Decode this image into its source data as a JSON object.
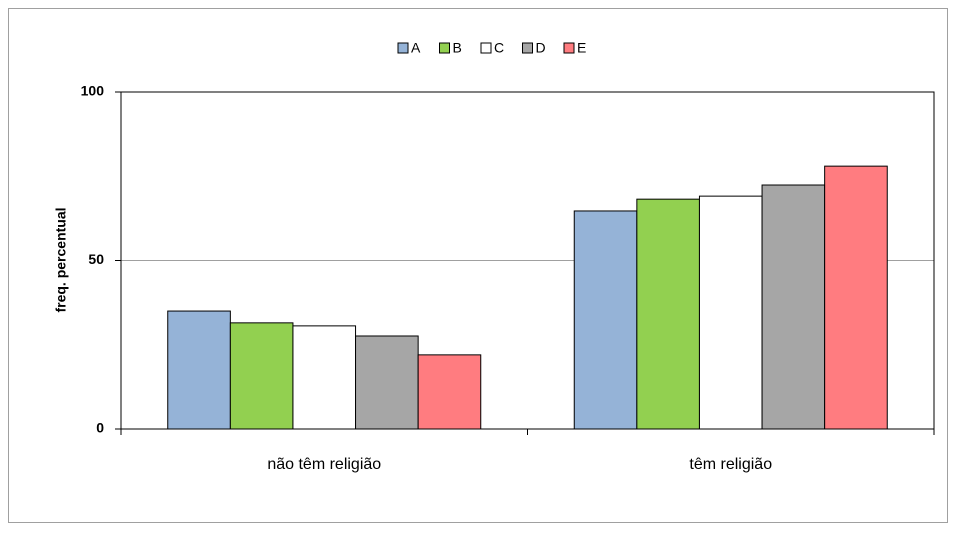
{
  "chart_data": {
    "type": "bar",
    "categories": [
      "não têm religião",
      "têm religião"
    ],
    "series": [
      {
        "name": "A",
        "color": "#95b3d7",
        "values": [
          35.0,
          64.7
        ]
      },
      {
        "name": "B",
        "color": "#92d050",
        "values": [
          31.5,
          68.2
        ]
      },
      {
        "name": "C",
        "color": "#ffffff",
        "values": [
          30.6,
          69.1
        ]
      },
      {
        "name": "D",
        "color": "#a6a6a6",
        "values": [
          27.6,
          72.4
        ]
      },
      {
        "name": "E",
        "color": "#ff7c80",
        "values": [
          22.0,
          78.0
        ]
      }
    ],
    "y_label": "freq. percentual",
    "ylim": [
      0,
      100
    ],
    "yticks": [
      0,
      50,
      100
    ],
    "grid": true,
    "legend": "top"
  }
}
